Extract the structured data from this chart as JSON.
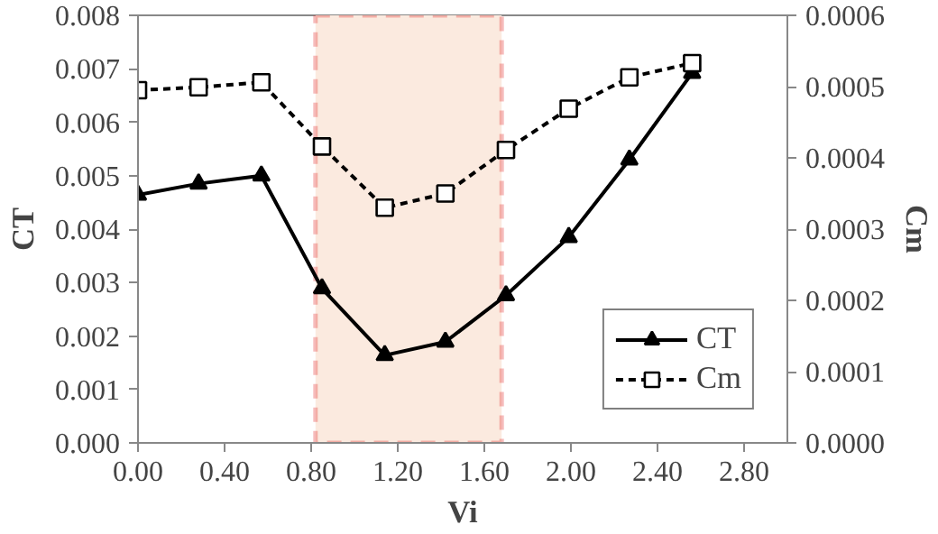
{
  "chart_data": {
    "type": "line",
    "xlabel": "Vi",
    "ylabel": "CT",
    "y2label": "Cm",
    "x": [
      0,
      0.28,
      0.57,
      0.85,
      1.14,
      1.42,
      1.7,
      1.99,
      2.27,
      2.56
    ],
    "series": [
      {
        "name": "CT",
        "color": "#000000",
        "marker": "triangle",
        "line_style": "solid",
        "values": [
          0.00464,
          0.00485,
          0.005,
          0.00289,
          0.00164,
          0.00189,
          0.00276,
          0.00385,
          0.0053,
          0.00692
        ]
      },
      {
        "name": "Cm",
        "color": "#000000",
        "marker": "square",
        "line_style": "dashed",
        "axis": "y2",
        "values": [
          0.000495,
          0.000499,
          0.000506,
          0.000416,
          0.00033,
          0.00035,
          0.000411,
          0.000469,
          0.000513,
          0.000533
        ]
      }
    ],
    "xlim": [
      0,
      3.0
    ],
    "xticks": [
      {
        "value": 0,
        "label": "0.00"
      },
      {
        "value": 0.4,
        "label": "0.40"
      },
      {
        "value": 0.8,
        "label": "0.80"
      },
      {
        "value": 1.2,
        "label": "1.20"
      },
      {
        "value": 1.6,
        "label": "1.60"
      },
      {
        "value": 2.0,
        "label": "2.00"
      },
      {
        "value": 2.4,
        "label": "2.40"
      },
      {
        "value": 2.8,
        "label": "2.80"
      }
    ],
    "ylim": [
      0,
      0.008
    ],
    "yticks": [
      {
        "value": 0,
        "label": "0.000"
      },
      {
        "value": 0.001,
        "label": "0.001"
      },
      {
        "value": 0.002,
        "label": "0.002"
      },
      {
        "value": 0.003,
        "label": "0.003"
      },
      {
        "value": 0.004,
        "label": "0.004"
      },
      {
        "value": 0.005,
        "label": "0.005"
      },
      {
        "value": 0.006,
        "label": "0.006"
      },
      {
        "value": 0.007,
        "label": "0.007"
      },
      {
        "value": 0.008,
        "label": "0.008"
      }
    ],
    "y2lim": [
      0,
      0.0006
    ],
    "y2ticks": [
      {
        "value": 0,
        "label": "0.0000"
      },
      {
        "value": 0.0001,
        "label": "0.0001"
      },
      {
        "value": 0.0002,
        "label": "0.0002"
      },
      {
        "value": 0.0003,
        "label": "0.0003"
      },
      {
        "value": 0.0004,
        "label": "0.0004"
      },
      {
        "value": 0.0005,
        "label": "0.0005"
      },
      {
        "value": 0.0006,
        "label": "0.0006"
      }
    ],
    "bands": [
      {
        "axis": "x",
        "from": 0.82,
        "to": 1.68,
        "color": "#fbeadf"
      }
    ],
    "grid": false,
    "legend": "bottom right"
  }
}
